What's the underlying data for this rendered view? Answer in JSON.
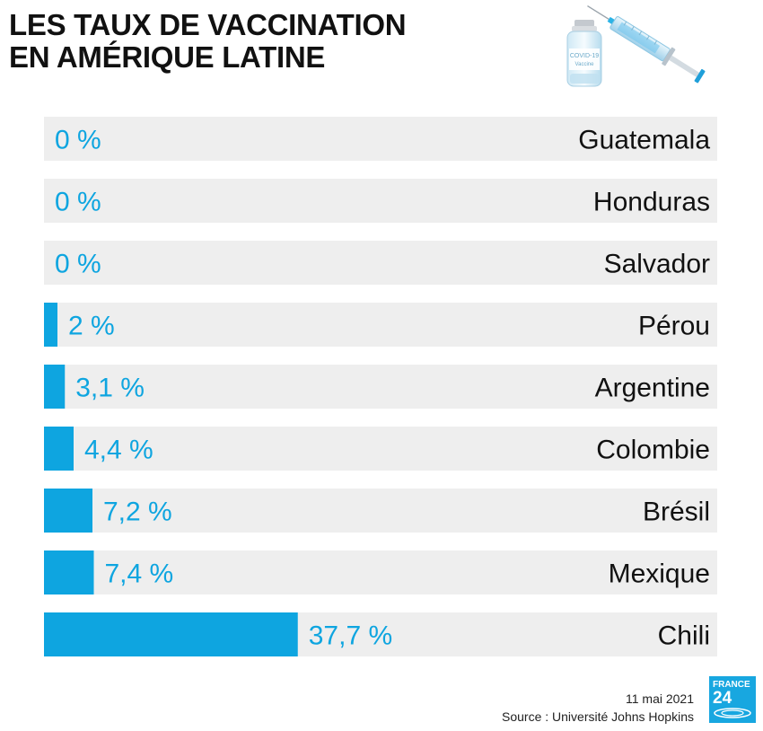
{
  "title_lines": [
    "LES TAUX DE VACCINATION",
    "EN AMÉRIQUE LATINE"
  ],
  "illustration": {
    "icon": "vaccine-vial-and-syringe-icon",
    "vial_label_lines": [
      "COVID-19",
      "Vaccine"
    ]
  },
  "chart_data": {
    "type": "bar",
    "orientation": "horizontal",
    "categories": [
      "Guatemala",
      "Honduras",
      "Salvador",
      "Pérou",
      "Argentine",
      "Colombie",
      "Brésil",
      "Mexique",
      "Chili"
    ],
    "values": [
      0,
      0,
      0,
      2,
      3.1,
      4.4,
      7.2,
      7.4,
      37.7
    ],
    "value_labels": [
      "0 %",
      "0 %",
      "0 %",
      "2 %",
      "3,1 %",
      "4,4 %",
      "7,2 %",
      "7,4 %",
      "37,7 %"
    ],
    "xlim": [
      0,
      100
    ],
    "unit": "%",
    "colors": {
      "bar": "#0ea5e0",
      "track": "#eeeeee",
      "value_text": "#0ea5e0",
      "category_text": "#111111"
    }
  },
  "footer": {
    "date": "11 mai 2021",
    "source": "Source : Université Johns Hopkins"
  },
  "logo": {
    "line1": "FRANCE",
    "line2": "24",
    "bg": "#18a7e0"
  }
}
